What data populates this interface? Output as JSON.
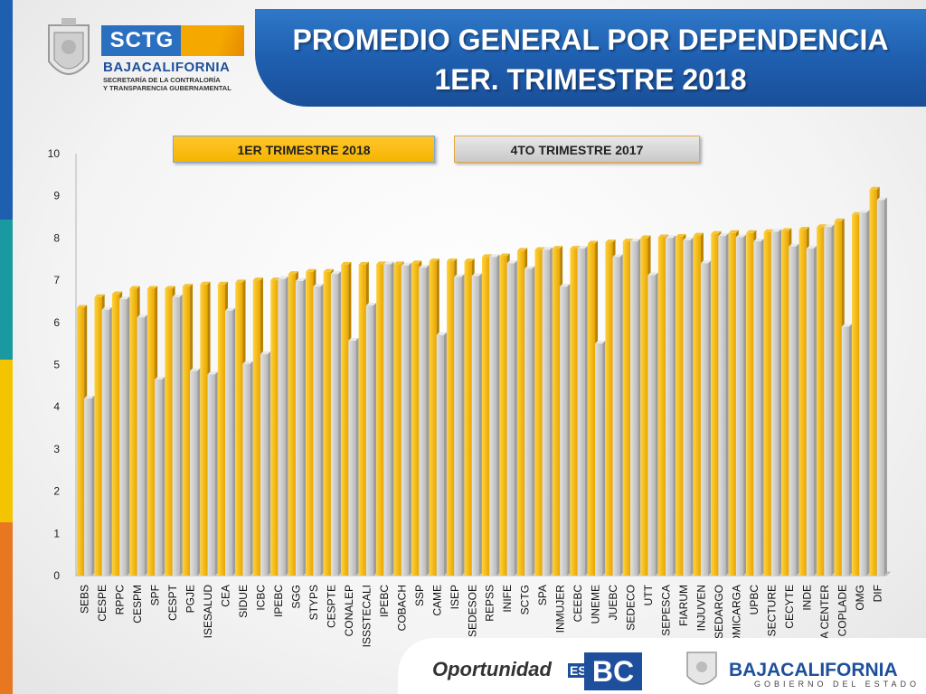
{
  "header": {
    "title_line1": "PROMEDIO GENERAL POR DEPENDENCIA",
    "title_line2": "1ER. TRIMESTRE 2018"
  },
  "logo": {
    "sctg": "SCTG",
    "state": "BAJACALIFORNIA",
    "sub1": "SECRETARÍA DE LA CONTRALORÍA",
    "sub2": "Y TRANSPARENCIA GUBERNAMENTAL"
  },
  "footer": {
    "slogan": "Oportunidad",
    "es": "ES",
    "bc": "BC",
    "state": "BAJACALIFORNIA",
    "gov": "GOBIERNO DEL ESTADO"
  },
  "colors": {
    "series1": "#f6b400",
    "series2": "#cccccc",
    "stripe": [
      "#1f5fb0",
      "#1a9aa0",
      "#f5c400",
      "#e87722"
    ]
  },
  "chart_data": {
    "type": "bar",
    "title": "",
    "xlabel": "",
    "ylabel": "",
    "ylim": [
      0,
      10
    ],
    "yticks": [
      0,
      1,
      2,
      3,
      4,
      5,
      6,
      7,
      8,
      9,
      10
    ],
    "grid": false,
    "legend_position": "top",
    "categories": [
      "SEBS",
      "CESPE",
      "RPPC",
      "CESPM",
      "SPF",
      "CESPT",
      "PGJE",
      "ISESALUD",
      "CEA",
      "SIDUE",
      "ICBC",
      "IPEBC",
      "SGG",
      "STYPS",
      "CESPTE",
      "CONALEP",
      "ISSSTECALI",
      "IPEBC",
      "COBACH",
      "SSP",
      "CAME",
      "ISEP",
      "SEDESOE",
      "REPSS",
      "INIFE",
      "SCTG",
      "SPA",
      "INMUJER",
      "CEEBC",
      "UNEME",
      "JUEBC",
      "SEDECO",
      "UTT",
      "SEPESCA",
      "FIARUM",
      "INJUVEN",
      "SEDARGO",
      "ADMICARGA",
      "UPBC",
      "SECTURE",
      "CECYTE",
      "INDE",
      "BAJA CENTER",
      "COPLADE",
      "OMG",
      "DIF"
    ],
    "series": [
      {
        "name": "1ER TRIMESTRE 2018",
        "values": [
          6.35,
          6.6,
          6.67,
          6.8,
          6.8,
          6.8,
          6.85,
          6.9,
          6.9,
          6.95,
          7.0,
          7.0,
          7.15,
          7.2,
          7.2,
          7.37,
          7.37,
          7.38,
          7.38,
          7.4,
          7.45,
          7.45,
          7.45,
          7.55,
          7.57,
          7.7,
          7.72,
          7.75,
          7.75,
          7.87,
          7.9,
          7.92,
          8.0,
          8.02,
          8.03,
          8.06,
          8.1,
          8.12,
          8.12,
          8.14,
          8.17,
          8.2,
          8.26,
          8.4,
          8.55,
          9.15
        ]
      },
      {
        "name": "4TO TRIMESTRE 2017",
        "values": [
          4.2,
          6.3,
          6.55,
          6.12,
          4.65,
          6.6,
          4.85,
          4.77,
          6.28,
          5.02,
          5.25,
          7.03,
          6.98,
          6.85,
          7.15,
          5.57,
          6.4,
          7.38,
          7.35,
          7.3,
          5.7,
          7.08,
          7.1,
          7.55,
          7.4,
          7.27,
          7.72,
          6.85,
          7.75,
          5.5,
          7.55,
          7.92,
          7.12,
          8.0,
          7.95,
          7.4,
          8.05,
          8.02,
          7.92,
          8.15,
          7.8,
          7.75,
          8.26,
          5.9,
          8.6,
          8.9
        ]
      }
    ]
  }
}
